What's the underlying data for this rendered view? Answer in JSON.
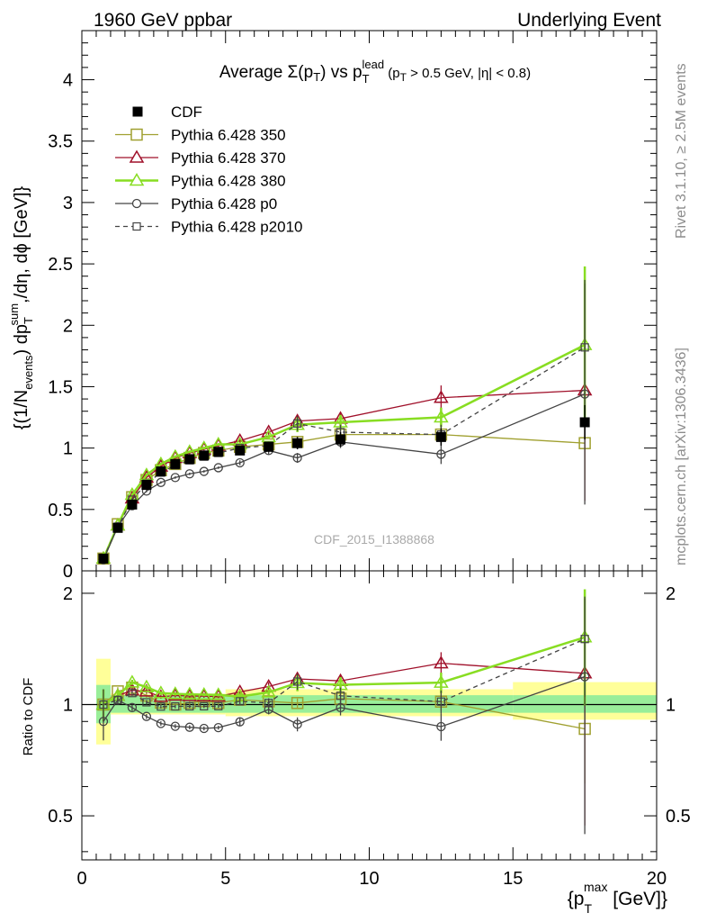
{
  "header": {
    "left": "1960 GeV ppbar",
    "right": "Underlying Event"
  },
  "side": {
    "rivet": "Rivet 3.1.10, ≥ 2.5M events",
    "mcplots": "mcplots.cern.ch [arXiv:1306.3436]"
  },
  "watermark": "CDF_2015_I1388868",
  "title": {
    "t1": "Average ",
    "t2": "Σ(p",
    "t3": "T",
    "t4": ") vs p",
    "t5": "T",
    "t6": "lead",
    "t7": " (p",
    "t8": "T",
    "t9": " > 0.5 GeV, |η| < 0.8)"
  },
  "ylabel_main": {
    "a": "{(1/N",
    "b": "events",
    "c": ") dp",
    "d": "T",
    "e": "sum",
    "f": ",/dη, dϕ [GeV]}"
  },
  "ylabel_ratio": "Ratio to CDF",
  "xlabel": {
    "a": "{p",
    "b": "T",
    "c": "max",
    "d": " [GeV]}"
  },
  "chart_data": {
    "type": "line",
    "xlim": [
      0,
      20
    ],
    "ylim_main": [
      0,
      4.4
    ],
    "ylim_ratio": [
      0.38,
      2.3
    ],
    "x_ticks": [
      "0",
      "5",
      "10",
      "15",
      "20"
    ],
    "y_ticks_main": [
      "0",
      "0.5",
      "1",
      "1.5",
      "2",
      "2.5",
      "3",
      "3.5",
      "4"
    ],
    "y_ticks_ratio": [
      "0.5",
      "1",
      "2"
    ],
    "legend_placement": "top-left",
    "x": [
      0.75,
      1.25,
      1.75,
      2.25,
      2.75,
      3.25,
      3.75,
      4.25,
      4.75,
      5.5,
      6.5,
      7.5,
      9.0,
      12.5,
      17.5
    ],
    "data": {
      "name": "CDF",
      "y": [
        0.1,
        0.35,
        0.54,
        0.7,
        0.81,
        0.87,
        0.91,
        0.94,
        0.97,
        0.98,
        1.01,
        1.04,
        1.07,
        1.09,
        1.21
      ],
      "y_err": [
        0.02,
        0.02,
        0.03,
        0.03,
        0.03,
        0.03,
        0.03,
        0.03,
        0.03,
        0.03,
        0.04,
        0.05,
        0.06,
        0.07,
        0.14
      ],
      "ratio_band_inner": [
        {
          "x0": 0.5,
          "x1": 1.0,
          "lo": 0.89,
          "hi": 1.13
        },
        {
          "x0": 1.0,
          "x1": 15.0,
          "lo": 0.95,
          "hi": 1.06
        },
        {
          "x0": 15.0,
          "x1": 20.0,
          "lo": 0.95,
          "hi": 1.06
        }
      ],
      "ratio_band_outer": [
        {
          "x0": 0.5,
          "x1": 1.0,
          "lo": 0.78,
          "hi": 1.33
        },
        {
          "x0": 1.0,
          "x1": 5.0,
          "lo": 0.94,
          "hi": 1.07
        },
        {
          "x0": 5.0,
          "x1": 15.0,
          "lo": 0.93,
          "hi": 1.1
        },
        {
          "x0": 15.0,
          "x1": 20.0,
          "lo": 0.91,
          "hi": 1.15
        }
      ]
    },
    "series": [
      {
        "name": "Pythia 6.428 350",
        "color": "#a0a030",
        "marker": "square-open",
        "dashed": false,
        "y": [
          0.1,
          0.38,
          0.6,
          0.74,
          0.82,
          0.87,
          0.92,
          0.96,
          0.98,
          1.01,
          1.03,
          1.05,
          1.11,
          1.11,
          1.04
        ],
        "y_err": [
          0.01,
          0.01,
          0.01,
          0.01,
          0.01,
          0.01,
          0.01,
          0.01,
          0.01,
          0.02,
          0.02,
          0.03,
          0.04,
          0.06,
          0.3
        ]
      },
      {
        "name": "Pythia 6.428 370",
        "color": "#a0102a",
        "marker": "triangle-open",
        "dashed": false,
        "y": [
          0.1,
          0.37,
          0.59,
          0.76,
          0.85,
          0.92,
          0.96,
          0.99,
          1.02,
          1.06,
          1.13,
          1.22,
          1.24,
          1.41,
          1.47
        ],
        "y_err": [
          0.01,
          0.01,
          0.01,
          0.01,
          0.01,
          0.01,
          0.01,
          0.01,
          0.01,
          0.02,
          0.03,
          0.05,
          0.05,
          0.1,
          0.9
        ]
      },
      {
        "name": "Pythia 6.428 380",
        "color": "#88dd22",
        "marker": "triangle-open",
        "dashed": false,
        "y": [
          0.1,
          0.37,
          0.62,
          0.78,
          0.87,
          0.93,
          0.97,
          1.0,
          1.03,
          1.03,
          1.09,
          1.19,
          1.21,
          1.25,
          1.84
        ],
        "y_err": [
          0.01,
          0.01,
          0.01,
          0.01,
          0.01,
          0.01,
          0.01,
          0.01,
          0.01,
          0.02,
          0.02,
          0.06,
          0.06,
          0.08,
          0.64
        ]
      },
      {
        "name": "Pythia 6.428 p0",
        "color": "#444444",
        "marker": "circle-open",
        "dashed": false,
        "y": [
          0.09,
          0.36,
          0.53,
          0.65,
          0.72,
          0.76,
          0.79,
          0.81,
          0.84,
          0.88,
          0.98,
          0.92,
          1.05,
          0.95,
          1.44
        ],
        "y_err": [
          0.01,
          0.01,
          0.01,
          0.01,
          0.01,
          0.01,
          0.01,
          0.01,
          0.01,
          0.02,
          0.03,
          0.04,
          0.05,
          0.08,
          0.9
        ]
      },
      {
        "name": "Pythia 6.428 p2010",
        "color": "#444444",
        "marker": "square-small-open",
        "dashed": true,
        "y": [
          0.1,
          0.36,
          0.58,
          0.71,
          0.8,
          0.86,
          0.9,
          0.93,
          0.96,
          1.0,
          1.02,
          1.2,
          1.13,
          1.11,
          1.82
        ],
        "y_err": [
          0.01,
          0.01,
          0.01,
          0.01,
          0.01,
          0.01,
          0.01,
          0.01,
          0.01,
          0.02,
          0.03,
          0.06,
          0.06,
          0.08,
          0.55
        ]
      }
    ]
  }
}
